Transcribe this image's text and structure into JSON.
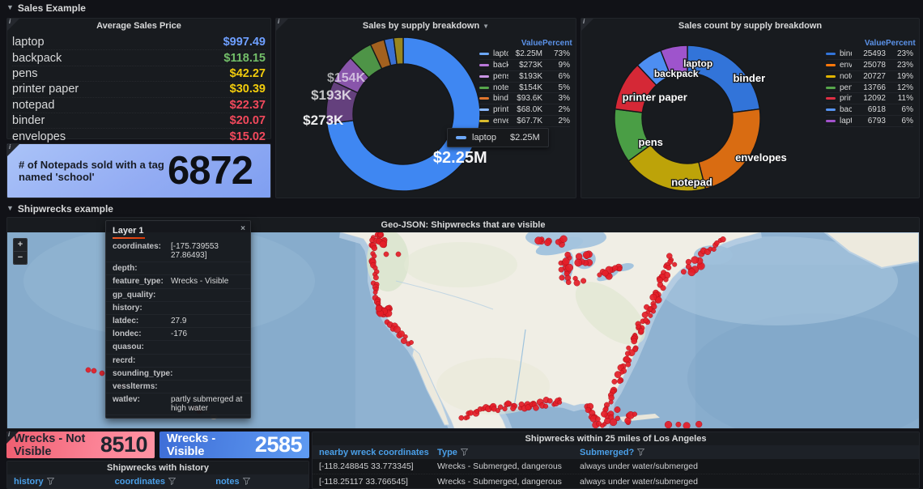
{
  "sections": {
    "sales": "Sales Example",
    "shipwrecks": "Shipwrecks example"
  },
  "avg_price_panel": {
    "title": "Average Sales Price",
    "items": [
      {
        "name": "laptop",
        "value": "$997.49",
        "color": "#6e9fff"
      },
      {
        "name": "backpack",
        "value": "$118.15",
        "color": "#73bf69"
      },
      {
        "name": "pens",
        "value": "$42.27",
        "color": "#f2cc0c"
      },
      {
        "name": "printer paper",
        "value": "$30.39",
        "color": "#f2cc0c"
      },
      {
        "name": "notepad",
        "value": "$22.37",
        "color": "#f2495c"
      },
      {
        "name": "binder",
        "value": "$20.07",
        "color": "#f2495c"
      },
      {
        "name": "envelopes",
        "value": "$15.02",
        "color": "#f2495c"
      }
    ]
  },
  "notepad_stat": {
    "title": "# of Notepads sold with a tag named 'school'",
    "value": "6872"
  },
  "chart_data": [
    {
      "type": "pie",
      "donut": true,
      "title": "Sales by supply breakdown",
      "legend_position": "right",
      "legend_columns": [
        "Value",
        "Percent"
      ],
      "series": [
        {
          "name": "laptop",
          "value": 2250000,
          "value_label": "$2.25M",
          "percent": 73,
          "segment_color": "#3f87f2",
          "swatch_color": "#6ca7f8"
        },
        {
          "name": "backpack",
          "value": 273000,
          "value_label": "$273K",
          "percent": 9,
          "segment_color": "#64407d",
          "swatch_color": "#b877d9"
        },
        {
          "name": "pens",
          "value": 193000,
          "value_label": "$193K",
          "percent": 6,
          "segment_color": "#8955ab",
          "swatch_color": "#ca95e5"
        },
        {
          "name": "notepad",
          "value": 154000,
          "value_label": "$154K",
          "percent": 5,
          "segment_color": "#4e9447",
          "swatch_color": "#56a64b"
        },
        {
          "name": "binder",
          "value": 93600,
          "value_label": "$93.6K",
          "percent": 3,
          "segment_color": "#a3611f",
          "swatch_color": "#e0752d"
        },
        {
          "name": "printer paper",
          "value": 68000,
          "value_label": "$68.0K",
          "percent": 2,
          "segment_color": "#3a70d3",
          "swatch_color": "#8ab8ff"
        },
        {
          "name": "envelopes",
          "value": 67700,
          "value_label": "$67.7K",
          "percent": 2,
          "segment_color": "#99861f",
          "swatch_color": "#d9bb2e"
        }
      ],
      "tooltip": {
        "name": "laptop",
        "value": "$2.25M",
        "swatch_color": "#6ca7f8"
      }
    },
    {
      "type": "pie",
      "donut": true,
      "title": "Sales count by supply breakdown",
      "legend_position": "right",
      "legend_columns": [
        "Value",
        "Percent"
      ],
      "series": [
        {
          "name": "binder",
          "value": 25493,
          "value_label": "25493",
          "percent": 23,
          "segment_color": "#3274d9",
          "swatch_color": "#3274d9"
        },
        {
          "name": "envelopes",
          "value": 25078,
          "value_label": "25078",
          "percent": 23,
          "segment_color": "#d96c12",
          "swatch_color": "#ff780a"
        },
        {
          "name": "notepad",
          "value": 20727,
          "value_label": "20727",
          "percent": 19,
          "segment_color": "#bda309",
          "swatch_color": "#e0b400"
        },
        {
          "name": "pens",
          "value": 13766,
          "value_label": "13766",
          "percent": 12,
          "segment_color": "#4a9e45",
          "swatch_color": "#56a64b"
        },
        {
          "name": "printer paper",
          "value": 12092,
          "value_label": "12092",
          "percent": 11,
          "segment_color": "#d52836",
          "swatch_color": "#e02f44"
        },
        {
          "name": "backpack",
          "value": 6918,
          "value_label": "6918",
          "percent": 6,
          "segment_color": "#4d8ef1",
          "swatch_color": "#5794f2"
        },
        {
          "name": "laptop",
          "value": 6793,
          "value_label": "6793",
          "percent": 6,
          "segment_color": "#9e54cc",
          "swatch_color": "#a352cc"
        }
      ]
    }
  ],
  "map_panel": {
    "title": "Geo-JSON: Shipwrecks that are visible",
    "zoom_in": "+",
    "zoom_out": "−",
    "tooltip": {
      "title": "Layer 1",
      "close": "×",
      "rows": [
        [
          "coordinates:",
          "[-175.739553 27.86493]"
        ],
        [
          "depth:",
          ""
        ],
        [
          "feature_type:",
          "Wrecks - Visible"
        ],
        [
          "gp_quality:",
          ""
        ],
        [
          "history:",
          ""
        ],
        [
          "latdec:",
          "27.9"
        ],
        [
          "londec:",
          "-176"
        ],
        [
          "quasou:",
          ""
        ],
        [
          "recrd:",
          ""
        ],
        [
          "sounding_type:",
          ""
        ],
        [
          "vesslterms:",
          ""
        ],
        [
          "watlev:",
          "partly submerged at high water"
        ]
      ]
    },
    "markers": {
      "color": "#e51e28",
      "strips": [
        [
          452,
          6,
          455,
          80,
          20,
          2.5
        ],
        [
          456,
          84,
          463,
          97,
          7,
          2
        ],
        [
          472,
          112,
          497,
          138,
          11,
          3
        ],
        [
          822,
          34,
          778,
          128,
          42,
          5
        ],
        [
          778,
          128,
          752,
          188,
          22,
          4
        ],
        [
          750,
          192,
          736,
          238,
          14,
          3
        ],
        [
          560,
          230,
          590,
          219,
          9,
          3
        ],
        [
          592,
          218,
          686,
          210,
          34,
          4.5
        ],
        [
          716,
          214,
          729,
          238,
          12,
          3
        ],
        [
          856,
          26,
          886,
          10,
          9,
          3
        ]
      ],
      "clusters": [
        [
          461,
          9,
          6,
          7,
          12
        ],
        [
          466,
          97,
          7,
          5,
          12
        ],
        [
          672,
          14,
          16,
          7,
          9
        ],
        [
          689,
          40,
          6,
          13,
          10
        ],
        [
          714,
          33,
          11,
          8,
          8
        ],
        [
          744,
          49,
          13,
          6,
          10
        ],
        [
          702,
          60,
          18,
          7,
          6
        ],
        [
          845,
          42,
          12,
          9,
          10
        ],
        [
          762,
          226,
          17,
          10,
          10
        ],
        [
          830,
          240,
          14,
          5,
          7
        ],
        [
          861,
          241,
          8,
          4,
          4
        ]
      ],
      "points": [
        [
          100,
          170
        ],
        [
          107,
          171
        ],
        [
          117,
          174
        ],
        [
          143,
          190
        ],
        [
          231,
          217
        ],
        [
          237,
          221
        ],
        [
          468,
          27
        ],
        [
          483,
          27
        ]
      ]
    }
  },
  "wreck_stats": [
    {
      "label": "Wrecks - Not Visible",
      "value": "8510"
    },
    {
      "label": "Wrecks - Visible",
      "value": "2585"
    }
  ],
  "tables": {
    "history": {
      "title": "Shipwrecks with history",
      "columns": [
        "history",
        "coordinates",
        "notes"
      ],
      "rows": []
    },
    "la": {
      "title": "Shipwrecks within 25 miles of Los Angeles",
      "columns": [
        "nearby wreck coordinates",
        "Type",
        "Submerged?"
      ],
      "rows": [
        [
          "[-118.248845 33.773345]",
          "Wrecks - Submerged, dangerous",
          "always under water/submerged"
        ],
        [
          "[-118.25117 33.766545]",
          "Wrecks - Submerged, dangerous",
          "always under water/submerged"
        ]
      ]
    }
  }
}
